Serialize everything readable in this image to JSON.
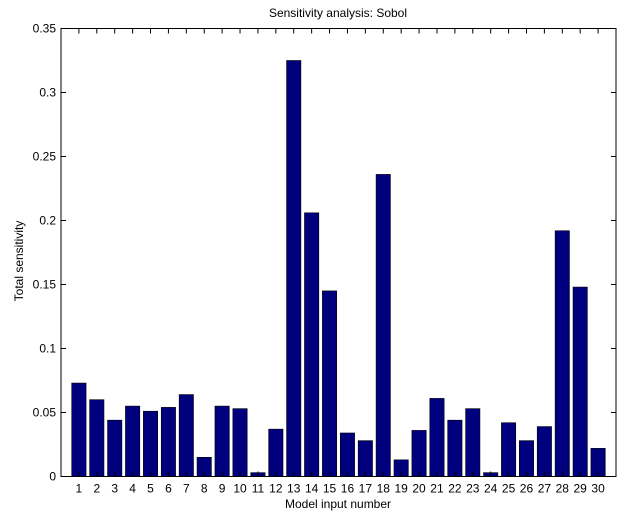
{
  "chart_data": {
    "type": "bar",
    "title": "Sensitivity analysis: Sobol",
    "xlabel": "Model input number",
    "ylabel": "Total sensitivity",
    "categories": [
      "1",
      "2",
      "3",
      "4",
      "5",
      "6",
      "7",
      "8",
      "9",
      "10",
      "11",
      "12",
      "13",
      "14",
      "15",
      "16",
      "17",
      "18",
      "19",
      "20",
      "21",
      "22",
      "23",
      "24",
      "25",
      "26",
      "27",
      "28",
      "29",
      "30"
    ],
    "values": [
      0.073,
      0.06,
      0.044,
      0.055,
      0.051,
      0.054,
      0.064,
      0.015,
      0.055,
      0.053,
      0.003,
      0.037,
      0.325,
      0.206,
      0.145,
      0.034,
      0.028,
      0.236,
      0.013,
      0.036,
      0.061,
      0.044,
      0.053,
      0.003,
      0.042,
      0.028,
      0.039,
      0.192,
      0.148,
      0.022
    ],
    "ylim": [
      0,
      0.35
    ],
    "yticks": [
      "0",
      "0.05",
      "0.1",
      "0.15",
      "0.2",
      "0.25",
      "0.3",
      "0.35"
    ],
    "ytick_values": [
      0,
      0.05,
      0.1,
      0.15,
      0.2,
      0.25,
      0.3,
      0.35
    ],
    "grid": false,
    "bar_color": "#00007f",
    "edge_color": "#000000"
  }
}
